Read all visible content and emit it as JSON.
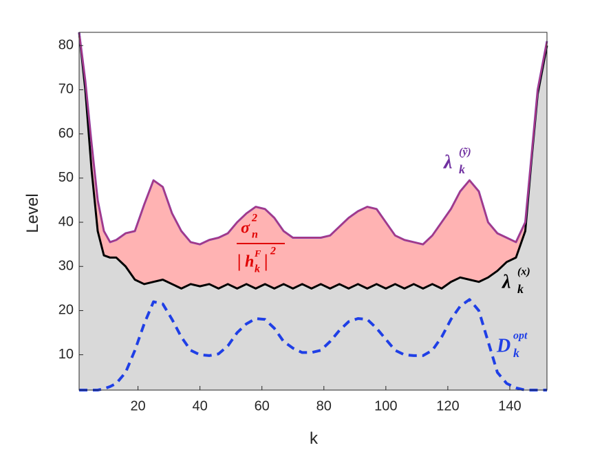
{
  "chart_data": {
    "type": "area-line",
    "x_label": "k",
    "y_label": "Level",
    "xlim": [
      1,
      152
    ],
    "ylim": [
      2,
      83
    ],
    "xticks": [
      20,
      40,
      60,
      80,
      100,
      120,
      140
    ],
    "yticks": [
      10,
      20,
      30,
      40,
      50,
      60,
      70,
      80
    ],
    "x": [
      1,
      3,
      5,
      7,
      9,
      11,
      13,
      16,
      19,
      22,
      25,
      28,
      31,
      34,
      37,
      40,
      43,
      46,
      49,
      52,
      55,
      58,
      61,
      64,
      67,
      70,
      73,
      76,
      79,
      82,
      85,
      88,
      91,
      94,
      97,
      100,
      103,
      106,
      109,
      112,
      115,
      118,
      121,
      124,
      127,
      130,
      133,
      136,
      139,
      142,
      145,
      147,
      149,
      152
    ],
    "background_fill": "#d9d9d9",
    "band_fill": "#ffb3b3",
    "series": [
      {
        "color": "#000000",
        "style": "solid",
        "values": [
          83,
          70,
          52,
          38,
          32.5,
          32,
          32,
          30,
          27,
          26,
          26.5,
          27,
          26,
          25,
          26,
          25.5,
          26,
          25,
          26,
          25,
          26,
          25,
          26,
          25,
          26,
          25,
          26,
          25,
          26,
          25,
          26,
          25,
          26,
          25,
          26,
          25,
          26,
          25,
          26,
          25,
          26,
          25,
          26.5,
          27.5,
          27,
          26.5,
          27.5,
          29,
          31,
          32,
          38,
          54,
          69,
          80
        ]
      },
      {
        "color": "#8a3fb0",
        "style": "solid",
        "values": [
          83,
          72,
          58,
          45,
          38,
          35.5,
          36,
          37.5,
          38,
          44,
          49.5,
          48,
          42,
          38,
          35.5,
          35,
          36,
          36.5,
          37.5,
          40,
          42,
          43.5,
          43,
          41,
          38,
          36.5,
          36.5,
          36.5,
          36.5,
          37,
          39,
          41,
          42.5,
          43.5,
          43,
          40,
          37,
          36,
          35.5,
          35,
          37,
          40,
          43,
          47,
          49.5,
          47,
          40,
          37.5,
          36.5,
          35.5,
          40,
          55,
          70,
          81
        ]
      },
      {
        "color": "#1f3fe6",
        "style": "dashed",
        "values": [
          2,
          2,
          2,
          2,
          2.3,
          2.8,
          3.5,
          6,
          11,
          17,
          22,
          21.5,
          18,
          14,
          11,
          10,
          9.8,
          10.2,
          12,
          15,
          17,
          18.2,
          18,
          16,
          13,
          11.5,
          10.5,
          10.5,
          11,
          13,
          15.5,
          17.5,
          18.2,
          18,
          16,
          13.5,
          11,
          10,
          9.8,
          9.8,
          11,
          14,
          18,
          21,
          22.5,
          20,
          13,
          6,
          3.5,
          2.5,
          2,
          2,
          2,
          2
        ]
      }
    ],
    "annotations": [
      {
        "base": "λ",
        "sup": "(ỹ)",
        "sub": "k",
        "color": "#7030a0"
      },
      {
        "base": "λ",
        "sup": "(x)",
        "sub": "k",
        "color": "#000000"
      },
      {
        "base": "D",
        "sup": "opt",
        "sub": "k",
        "color": "#1f3fe6"
      }
    ],
    "fraction": {
      "color": "#e00000",
      "numerator": {
        "base": "σ",
        "sup": "2",
        "sub": "n"
      },
      "denominator": {
        "open": "|",
        "base": "h",
        "sup": "F",
        "sub": "k",
        "close": "|",
        "power": "2"
      }
    }
  }
}
